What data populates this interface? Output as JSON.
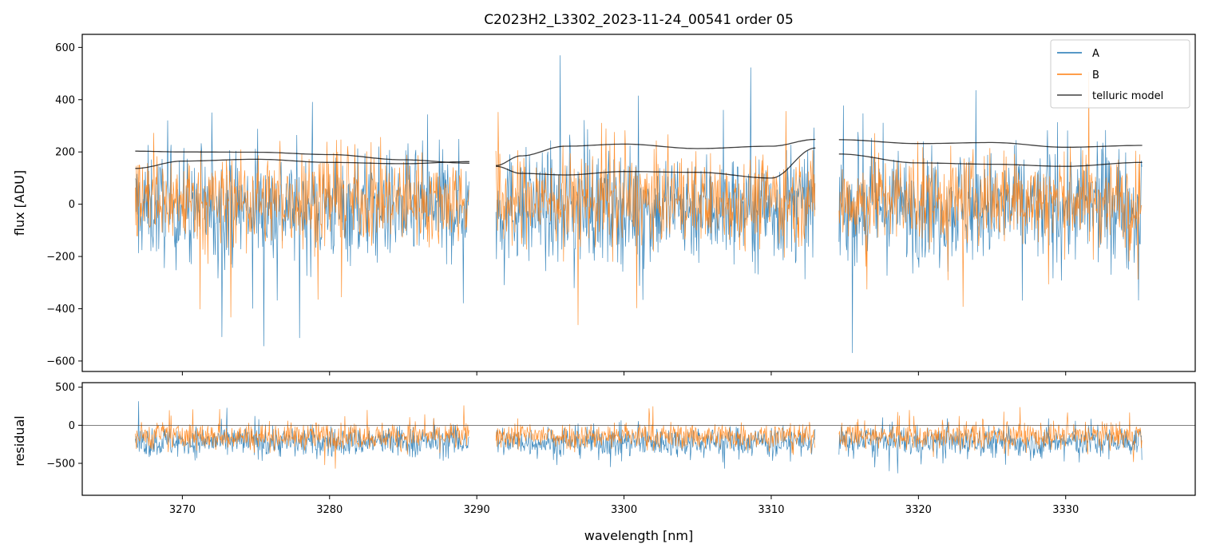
{
  "figure": {
    "title": "C2023H2_L3302_2023-11-24_00541  order 05",
    "colors": {
      "A": "#1f77b4",
      "B": "#ff7f0e",
      "telluric": "#000000"
    }
  },
  "chart_data": [
    {
      "type": "line",
      "panel": "flux",
      "title": "C2023H2_L3302_2023-11-24_00541  order 05",
      "xlabel": "",
      "ylabel": "flux [ADU]",
      "xlim": [
        3263.2,
        3338.8
      ],
      "ylim": [
        -640,
        650
      ],
      "yticks": [
        -600,
        -400,
        -200,
        0,
        200,
        400,
        600
      ],
      "ytick_labels": [
        "−600",
        "−400",
        "−200",
        "0",
        "200",
        "400",
        "600"
      ],
      "xticks": [
        3270,
        3280,
        3290,
        3300,
        3310,
        3320,
        3330
      ],
      "segments": [
        [
          3266.8,
          3289.5
        ],
        [
          3291.3,
          3313.0
        ],
        [
          3314.6,
          3335.2
        ]
      ],
      "series": [
        {
          "name": "A",
          "color": "#1f77b4",
          "noise": {
            "center": 0,
            "core_amplitude": 400,
            "spike_amplitude": 900,
            "bias": -40
          }
        },
        {
          "name": "B",
          "color": "#ff7f0e",
          "noise": {
            "center": 0,
            "core_amplitude": 320,
            "spike_amplitude": 900,
            "bias": 60
          }
        },
        {
          "name": "telluric model",
          "color": "#000000",
          "curves": [
            {
              "x": [
                3266.8,
                3270,
                3275,
                3280,
                3285,
                3289.5
              ],
              "y": [
                203,
                200,
                199,
                190,
                170,
                157
              ]
            },
            {
              "x": [
                3266.8,
                3270,
                3275,
                3280,
                3285,
                3289.5
              ],
              "y": [
                137,
                165,
                172,
                160,
                155,
                163
              ]
            },
            {
              "x": [
                3291.3,
                3293,
                3296,
                3300,
                3305,
                3310,
                3313.0
              ],
              "y": [
                148,
                185,
                222,
                230,
                213,
                222,
                248
              ]
            },
            {
              "x": [
                3291.3,
                3293,
                3296,
                3300,
                3305,
                3310,
                3313.0
              ],
              "y": [
                145,
                118,
                112,
                125,
                122,
                100,
                215
              ]
            },
            {
              "x": [
                3314.6,
                3320,
                3325,
                3330,
                3335.2
              ],
              "y": [
                247,
                232,
                236,
                218,
                225
              ]
            },
            {
              "x": [
                3314.6,
                3320,
                3325,
                3330,
                3335.2
              ],
              "y": [
                192,
                158,
                153,
                145,
                160
              ]
            }
          ]
        }
      ],
      "legend": {
        "position": "top-right",
        "entries": [
          "A",
          "B",
          "telluric model"
        ]
      }
    },
    {
      "type": "line",
      "panel": "residual",
      "xlabel": "wavelength [nm]",
      "ylabel": "residual",
      "xlim": [
        3263.2,
        3338.8
      ],
      "ylim": [
        -920,
        560
      ],
      "yticks": [
        -500,
        0,
        500
      ],
      "ytick_labels": [
        "−500",
        "0",
        "500"
      ],
      "xticks": [
        3270,
        3280,
        3290,
        3300,
        3310,
        3320,
        3330
      ],
      "xtick_labels": [
        "3270",
        "3280",
        "3290",
        "3300",
        "3310",
        "3320",
        "3330"
      ],
      "zero_line": true,
      "series": [
        {
          "name": "A",
          "color": "#1f77b4",
          "noise": {
            "center": -200,
            "core_amplitude": 380,
            "spike_amplitude": 700,
            "bias": -60
          }
        },
        {
          "name": "B",
          "color": "#ff7f0e",
          "noise": {
            "center": -150,
            "core_amplitude": 330,
            "spike_amplitude": 700,
            "bias": 40
          }
        }
      ]
    }
  ]
}
